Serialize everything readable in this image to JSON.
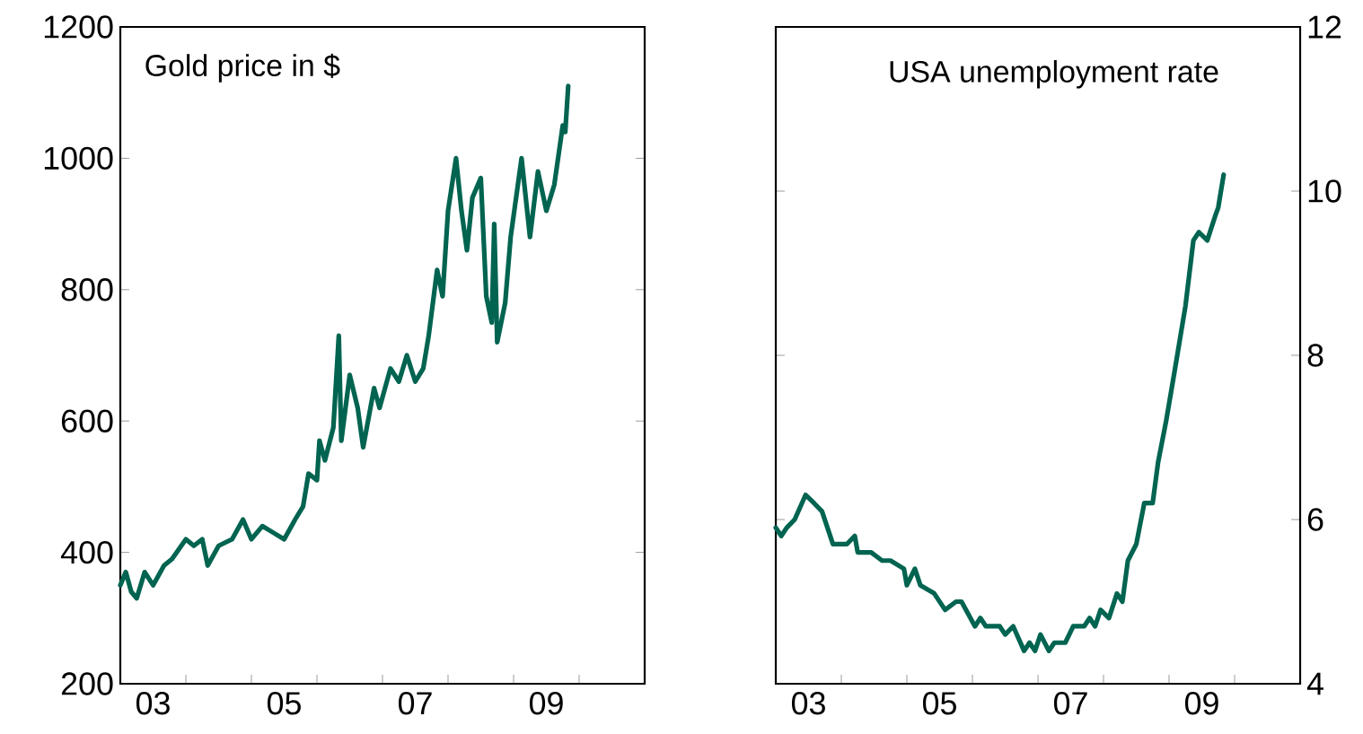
{
  "chart_data": [
    {
      "type": "line",
      "title": "Gold price in $",
      "color": "#006450",
      "marker": "none",
      "x": [
        "2003-01-01",
        "2003-02-01",
        "2003-03-01",
        "2003-04-01",
        "2003-05-15",
        "2003-07-01",
        "2003-09-01",
        "2003-10-15",
        "2004-01-01",
        "2004-02-15",
        "2004-04-01",
        "2004-05-01",
        "2004-07-01",
        "2004-09-15",
        "2004-11-15",
        "2005-01-01",
        "2005-03-01",
        "2005-05-01",
        "2005-07-01",
        "2005-09-01",
        "2005-10-15",
        "2005-11-15",
        "2006-01-01",
        "2006-01-15",
        "2006-02-15",
        "2006-04-01",
        "2006-05-01",
        "2006-05-15",
        "2006-07-01",
        "2006-08-15",
        "2006-09-15",
        "2006-11-15",
        "2006-12-15",
        "2007-02-15",
        "2007-04-01",
        "2007-05-15",
        "2007-07-01",
        "2007-08-15",
        "2007-09-15",
        "2007-11-01",
        "2007-12-01",
        "2008-01-01",
        "2008-02-15",
        "2008-03-15",
        "2008-04-15",
        "2008-05-15",
        "2008-07-01",
        "2008-08-01",
        "2008-09-01",
        "2008-09-15",
        "2008-10-01",
        "2008-11-15",
        "2008-12-15",
        "2009-02-15",
        "2009-04-01",
        "2009-05-15",
        "2009-07-01",
        "2009-08-15",
        "2009-10-01",
        "2009-10-15",
        "2009-11-01"
      ],
      "values": [
        350,
        370,
        340,
        330,
        370,
        350,
        380,
        390,
        420,
        410,
        420,
        380,
        410,
        420,
        450,
        420,
        440,
        430,
        420,
        450,
        470,
        520,
        510,
        570,
        540,
        590,
        730,
        570,
        670,
        620,
        560,
        650,
        620,
        680,
        660,
        700,
        660,
        680,
        730,
        830,
        790,
        920,
        1000,
        920,
        860,
        940,
        970,
        790,
        750,
        900,
        720,
        780,
        880,
        1000,
        880,
        980,
        920,
        960,
        1050,
        1040,
        1110
      ],
      "xlim": [
        "2003-01-01",
        "2011-01-01"
      ],
      "xticks": [
        {
          "value": "2003-07-01",
          "label": "03"
        },
        {
          "value": "2005-07-01",
          "label": "05"
        },
        {
          "value": "2007-07-01",
          "label": "07"
        },
        {
          "value": "2009-07-01",
          "label": "09"
        },
        {
          "value": "2004-01-01",
          "label": null
        },
        {
          "value": "2005-01-01",
          "label": null
        },
        {
          "value": "2006-01-01",
          "label": null
        },
        {
          "value": "2007-01-01",
          "label": null
        },
        {
          "value": "2008-01-01",
          "label": null
        },
        {
          "value": "2009-01-01",
          "label": null
        },
        {
          "value": "2010-01-01",
          "label": null
        }
      ],
      "ylim": [
        200,
        1200
      ],
      "yticks": [
        200,
        400,
        600,
        800,
        1000,
        1200
      ]
    },
    {
      "type": "line",
      "title": "USA unemployment rate",
      "color": "#006450",
      "marker": "none",
      "x": [
        "2003-01-01",
        "2003-02-01",
        "2003-03-01",
        "2003-04-15",
        "2003-06-15",
        "2003-08-01",
        "2003-09-15",
        "2003-11-15",
        "2004-02-01",
        "2004-03-15",
        "2004-04-01",
        "2004-06-15",
        "2004-08-15",
        "2004-10-01",
        "2004-12-15",
        "2005-01-01",
        "2005-02-15",
        "2005-03-15",
        "2005-06-01",
        "2005-08-01",
        "2005-10-01",
        "2005-11-01",
        "2006-01-15",
        "2006-02-15",
        "2006-03-15",
        "2006-06-01",
        "2006-07-01",
        "2006-08-15",
        "2006-10-15",
        "2006-11-15",
        "2006-12-15",
        "2007-01-15",
        "2007-03-01",
        "2007-04-01",
        "2007-06-01",
        "2007-07-15",
        "2007-09-15",
        "2007-10-15",
        "2007-11-15",
        "2007-12-15",
        "2008-02-01",
        "2008-03-15",
        "2008-04-15",
        "2008-05-15",
        "2008-07-01",
        "2008-08-15",
        "2008-10-01",
        "2008-11-01",
        "2008-12-15",
        "2009-02-01",
        "2009-04-01",
        "2009-05-15",
        "2009-06-15",
        "2009-08-01",
        "2009-09-15",
        "2009-10-01",
        "2009-11-01"
      ],
      "values": [
        5.9,
        5.8,
        5.9,
        6.0,
        6.3,
        6.2,
        6.1,
        5.7,
        5.7,
        5.8,
        5.6,
        5.6,
        5.5,
        5.5,
        5.4,
        5.2,
        5.4,
        5.2,
        5.1,
        4.9,
        5.0,
        5.0,
        4.7,
        4.8,
        4.7,
        4.7,
        4.6,
        4.7,
        4.4,
        4.5,
        4.4,
        4.6,
        4.4,
        4.5,
        4.5,
        4.7,
        4.7,
        4.8,
        4.7,
        4.9,
        4.8,
        5.1,
        5.0,
        5.5,
        5.7,
        6.2,
        6.2,
        6.7,
        7.2,
        7.8,
        8.6,
        9.4,
        9.5,
        9.4,
        9.7,
        9.8,
        10.2
      ],
      "xlim": [
        "2003-01-01",
        "2011-01-01"
      ],
      "xticks": [
        {
          "value": "2003-07-01",
          "label": "03"
        },
        {
          "value": "2005-07-01",
          "label": "05"
        },
        {
          "value": "2007-07-01",
          "label": "07"
        },
        {
          "value": "2009-07-01",
          "label": "09"
        },
        {
          "value": "2004-01-01",
          "label": null
        },
        {
          "value": "2005-01-01",
          "label": null
        },
        {
          "value": "2006-01-01",
          "label": null
        },
        {
          "value": "2007-01-01",
          "label": null
        },
        {
          "value": "2008-01-01",
          "label": null
        },
        {
          "value": "2009-01-01",
          "label": null
        },
        {
          "value": "2010-01-01",
          "label": null
        }
      ],
      "ylim": [
        4,
        12
      ],
      "yticks": [
        4,
        6,
        8,
        10,
        12
      ]
    }
  ]
}
